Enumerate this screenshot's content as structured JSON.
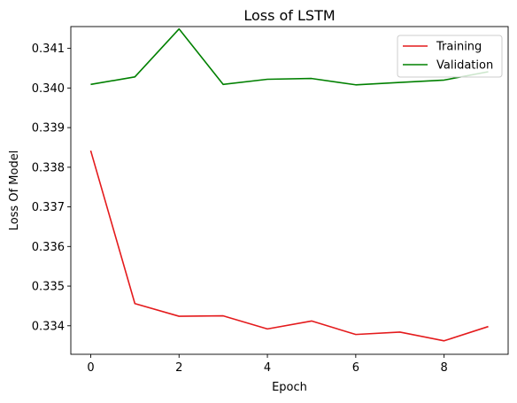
{
  "chart_data": {
    "type": "line",
    "title": "Loss of LSTM",
    "xlabel": "Epoch",
    "ylabel": "Loss Of Model",
    "x": [
      0,
      1,
      2,
      3,
      4,
      5,
      6,
      7,
      8,
      9
    ],
    "xlim": [
      -0.45,
      9.45
    ],
    "ylim": [
      0.33328,
      0.34155
    ],
    "xticks": [
      0,
      2,
      4,
      6,
      8
    ],
    "xtick_labels": [
      "0",
      "2",
      "4",
      "6",
      "8"
    ],
    "yticks": [
      0.334,
      0.335,
      0.336,
      0.337,
      0.338,
      0.339,
      0.34,
      0.341
    ],
    "ytick_labels": [
      "0.334",
      "0.335",
      "0.336",
      "0.337",
      "0.338",
      "0.339",
      "0.340",
      "0.341"
    ],
    "grid": false,
    "legend_position": "top-right",
    "series": [
      {
        "name": "Training",
        "color": "#e41a1c",
        "values": [
          0.33842,
          0.33456,
          0.33424,
          0.33425,
          0.33392,
          0.33412,
          0.33378,
          0.33384,
          0.33362,
          0.33398
        ]
      },
      {
        "name": "Validation",
        "color": "#008000",
        "values": [
          0.34009,
          0.34028,
          0.34149,
          0.34009,
          0.34022,
          0.34024,
          0.34008,
          0.34014,
          0.3402,
          0.34041
        ]
      }
    ]
  }
}
